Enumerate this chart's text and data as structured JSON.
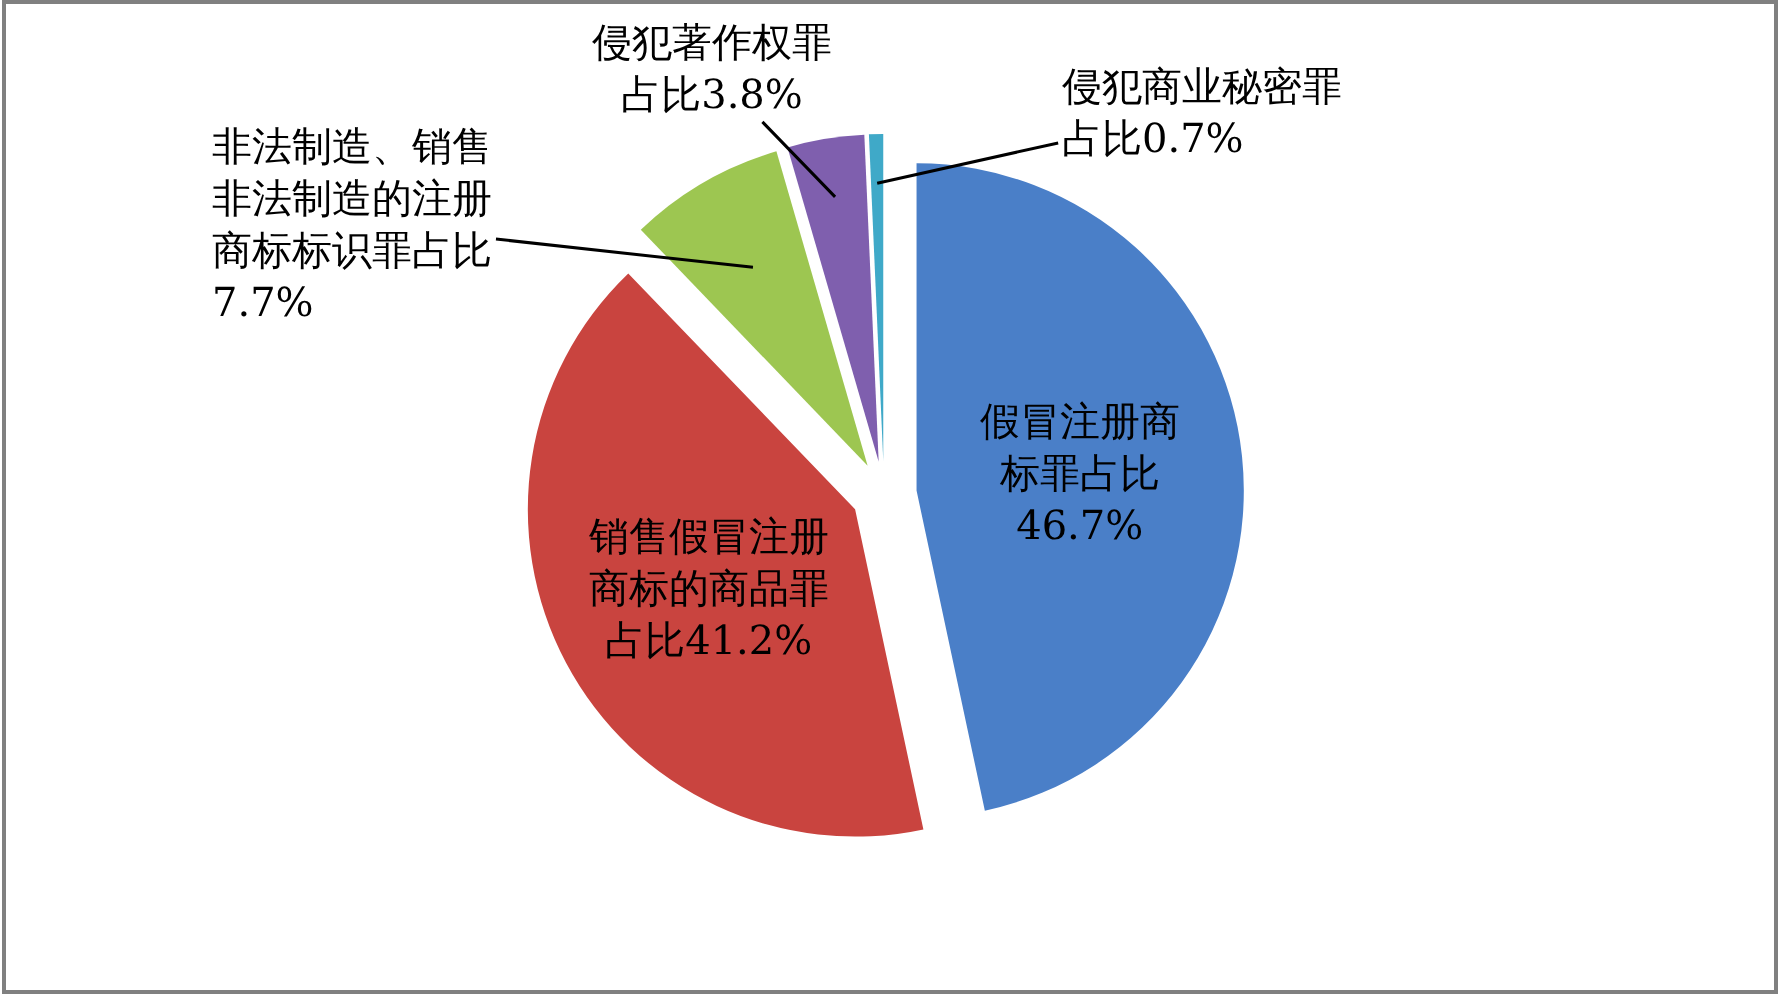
{
  "chart_data": {
    "type": "pie",
    "categories": [
      "假冒注册商标罪占比",
      "销售假冒注册商标的商品罪占比",
      "非法制造、销售非法制造的注册商标标识罪占比",
      "侵犯著作权罪占比",
      "侵犯商业秘密罪占比"
    ],
    "values": [
      46.7,
      41.2,
      7.7,
      3.8,
      0.7
    ],
    "value_labels": [
      "46.7%",
      "41.2%",
      "7.7%",
      "3.8%",
      "0.7%"
    ],
    "colors": [
      "#4a7fc8",
      "#c9443f",
      "#9dc651",
      "#7f5fae",
      "#3fa9c8"
    ]
  }
}
